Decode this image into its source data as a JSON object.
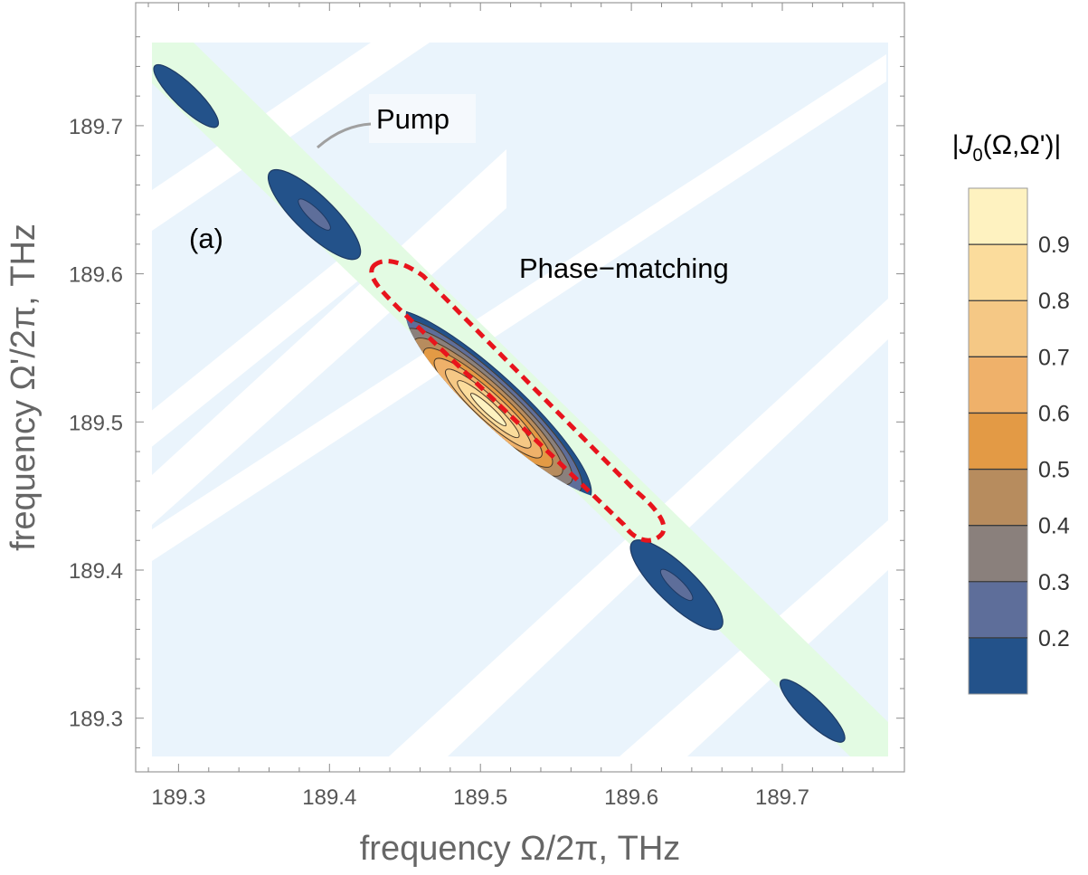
{
  "chart_data": {
    "type": "contour",
    "xlabel": "frequency Ω/2π, THz",
    "ylabel": "frequency Ω'/2π, THz",
    "xlim": [
      189.27,
      189.76
    ],
    "ylim": [
      189.27,
      189.76
    ],
    "x_ticks": [
      "189.3",
      "189.4",
      "189.5",
      "189.6",
      "189.7"
    ],
    "y_ticks": [
      "189.3",
      "189.4",
      "189.5",
      "189.6",
      "189.7"
    ],
    "panel_label": "(a)",
    "annotations": {
      "pump": "Pump",
      "phase_matching": "Phase−matching"
    },
    "colorbar": {
      "title": "|J0(Ω,Ω')|",
      "ticks": [
        "0.2",
        "0.3",
        "0.4",
        "0.5",
        "0.6",
        "0.7",
        "0.8",
        "0.9"
      ],
      "levels": [
        0.1,
        0.2,
        0.3,
        0.4,
        0.5,
        0.6,
        0.7,
        0.8,
        0.9,
        1.0
      ],
      "colors": [
        "#23528a",
        "#5e6e9a",
        "#8a807c",
        "#b78c5e",
        "#e39a45",
        "#efb16a",
        "#f5c885",
        "#fbdc9c",
        "#fef2c0"
      ]
    },
    "main_lobe": {
      "center": [
        189.5,
        189.5
      ],
      "peak": 1.0,
      "extent_x": [
        189.44,
        189.585
      ]
    },
    "side_lobes": [
      {
        "center_x": 189.305,
        "center_y": 189.72,
        "peak": 0.15
      },
      {
        "center_x": 189.39,
        "center_y": 189.64,
        "peak": 0.25
      },
      {
        "center_x": 189.63,
        "center_y": 189.39,
        "peak": 0.25
      },
      {
        "center_x": 189.72,
        "center_y": 189.305,
        "peak": 0.15
      }
    ],
    "pump_band": {
      "x_plus_y": 379.0,
      "color": "#e3fbe3"
    },
    "phase_matching_bands": {
      "color": "#eaf4fc"
    },
    "dashed_contour_color": "#e8141c"
  }
}
